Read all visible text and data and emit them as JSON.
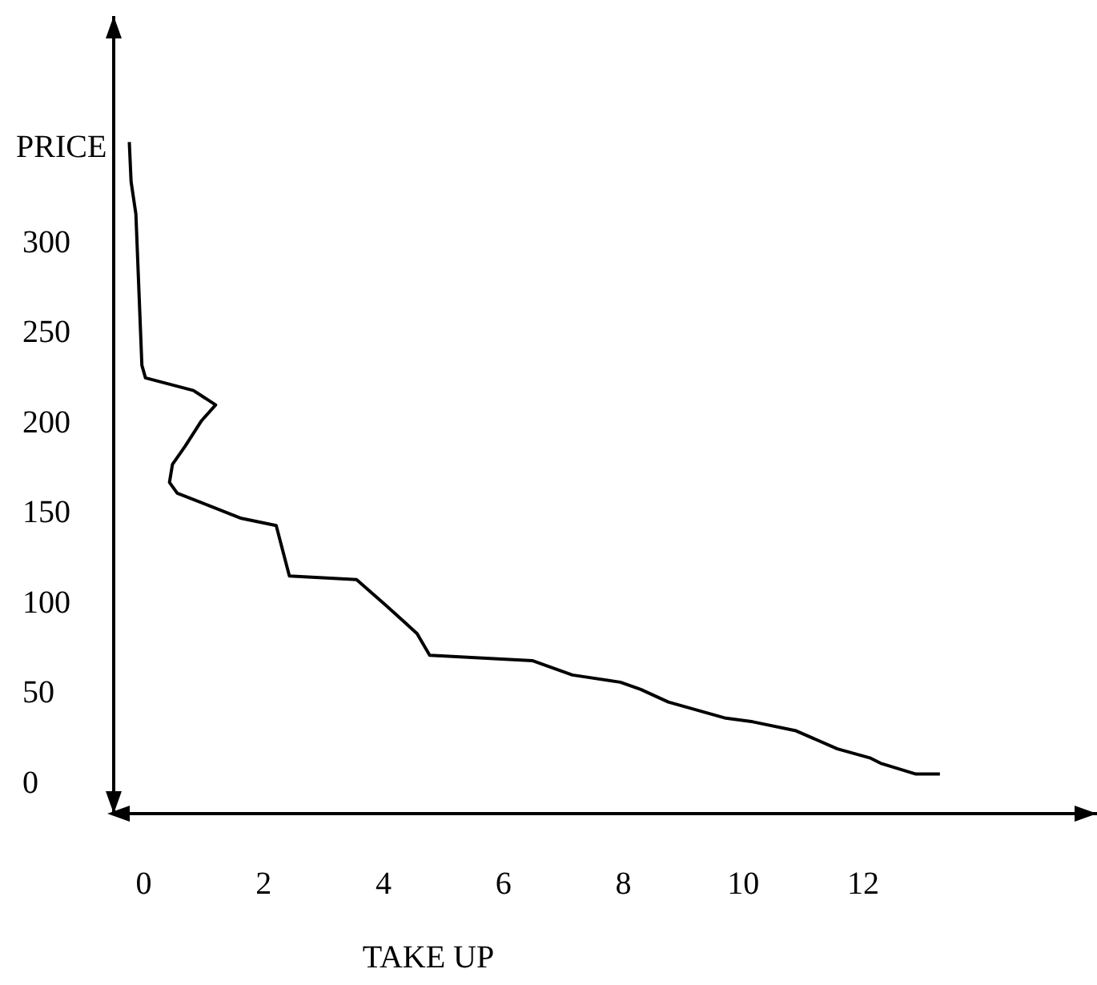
{
  "chart_data": {
    "type": "line",
    "xlabel": "TAKE UP",
    "ylabel": "PRICE",
    "xlim": [
      -0.5,
      15.9
    ],
    "ylim": [
      -18,
      425
    ],
    "xticks": [
      0,
      2,
      4,
      6,
      8,
      10,
      12
    ],
    "yticks": [
      0,
      50,
      100,
      150,
      200,
      250,
      300
    ],
    "grid": false,
    "series": [
      {
        "color": "#000000",
        "x": [
          -0.24,
          -0.21,
          -0.13,
          -0.03,
          0.03,
          0.83,
          1.2,
          0.96,
          0.69,
          0.48,
          0.43,
          0.56,
          1.63,
          2.21,
          2.43,
          3.55,
          4.03,
          4.56,
          4.77,
          6.48,
          7.15,
          7.95,
          8.29,
          8.75,
          9.71,
          10.16,
          10.88,
          11.57,
          12.11,
          12.29,
          12.88,
          13.28
        ],
        "values": [
          355,
          333,
          315,
          231,
          224,
          217,
          209,
          200,
          186,
          176,
          166,
          160,
          146,
          142,
          114,
          112,
          98,
          82,
          70,
          67,
          59,
          55,
          51,
          44,
          35,
          33,
          28,
          18,
          13,
          10,
          4,
          4
        ]
      }
    ]
  }
}
